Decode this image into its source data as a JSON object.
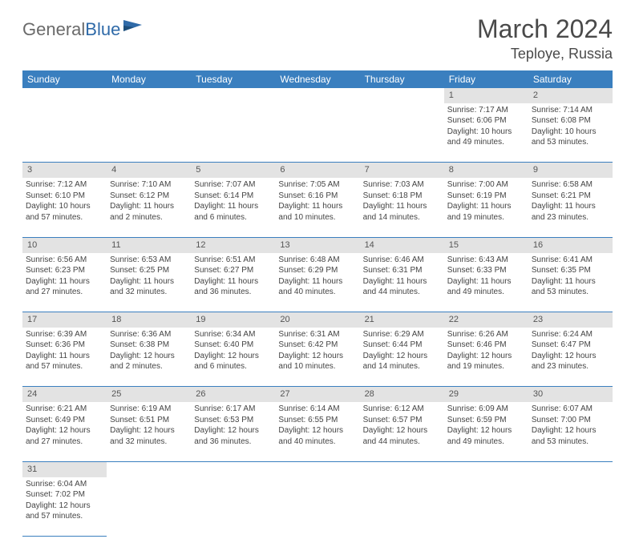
{
  "logo": {
    "part1": "General",
    "part2": "Blue"
  },
  "title": "March 2024",
  "location": "Teploye, Russia",
  "colors": {
    "header_bg": "#3a7fbf",
    "header_text": "#ffffff",
    "daynum_bg": "#e3e3e3",
    "border": "#3a7fbf",
    "logo_gray": "#6a6a6a",
    "logo_blue": "#2f6aa8"
  },
  "weekdays": [
    "Sunday",
    "Monday",
    "Tuesday",
    "Wednesday",
    "Thursday",
    "Friday",
    "Saturday"
  ],
  "weeks": [
    {
      "nums": [
        "",
        "",
        "",
        "",
        "",
        "1",
        "2"
      ],
      "cells": [
        null,
        null,
        null,
        null,
        null,
        {
          "sunrise": "7:17 AM",
          "sunset": "6:06 PM",
          "dl1": "Daylight: 10 hours",
          "dl2": "and 49 minutes."
        },
        {
          "sunrise": "7:14 AM",
          "sunset": "6:08 PM",
          "dl1": "Daylight: 10 hours",
          "dl2": "and 53 minutes."
        }
      ]
    },
    {
      "nums": [
        "3",
        "4",
        "5",
        "6",
        "7",
        "8",
        "9"
      ],
      "cells": [
        {
          "sunrise": "7:12 AM",
          "sunset": "6:10 PM",
          "dl1": "Daylight: 10 hours",
          "dl2": "and 57 minutes."
        },
        {
          "sunrise": "7:10 AM",
          "sunset": "6:12 PM",
          "dl1": "Daylight: 11 hours",
          "dl2": "and 2 minutes."
        },
        {
          "sunrise": "7:07 AM",
          "sunset": "6:14 PM",
          "dl1": "Daylight: 11 hours",
          "dl2": "and 6 minutes."
        },
        {
          "sunrise": "7:05 AM",
          "sunset": "6:16 PM",
          "dl1": "Daylight: 11 hours",
          "dl2": "and 10 minutes."
        },
        {
          "sunrise": "7:03 AM",
          "sunset": "6:18 PM",
          "dl1": "Daylight: 11 hours",
          "dl2": "and 14 minutes."
        },
        {
          "sunrise": "7:00 AM",
          "sunset": "6:19 PM",
          "dl1": "Daylight: 11 hours",
          "dl2": "and 19 minutes."
        },
        {
          "sunrise": "6:58 AM",
          "sunset": "6:21 PM",
          "dl1": "Daylight: 11 hours",
          "dl2": "and 23 minutes."
        }
      ]
    },
    {
      "nums": [
        "10",
        "11",
        "12",
        "13",
        "14",
        "15",
        "16"
      ],
      "cells": [
        {
          "sunrise": "6:56 AM",
          "sunset": "6:23 PM",
          "dl1": "Daylight: 11 hours",
          "dl2": "and 27 minutes."
        },
        {
          "sunrise": "6:53 AM",
          "sunset": "6:25 PM",
          "dl1": "Daylight: 11 hours",
          "dl2": "and 32 minutes."
        },
        {
          "sunrise": "6:51 AM",
          "sunset": "6:27 PM",
          "dl1": "Daylight: 11 hours",
          "dl2": "and 36 minutes."
        },
        {
          "sunrise": "6:48 AM",
          "sunset": "6:29 PM",
          "dl1": "Daylight: 11 hours",
          "dl2": "and 40 minutes."
        },
        {
          "sunrise": "6:46 AM",
          "sunset": "6:31 PM",
          "dl1": "Daylight: 11 hours",
          "dl2": "and 44 minutes."
        },
        {
          "sunrise": "6:43 AM",
          "sunset": "6:33 PM",
          "dl1": "Daylight: 11 hours",
          "dl2": "and 49 minutes."
        },
        {
          "sunrise": "6:41 AM",
          "sunset": "6:35 PM",
          "dl1": "Daylight: 11 hours",
          "dl2": "and 53 minutes."
        }
      ]
    },
    {
      "nums": [
        "17",
        "18",
        "19",
        "20",
        "21",
        "22",
        "23"
      ],
      "cells": [
        {
          "sunrise": "6:39 AM",
          "sunset": "6:36 PM",
          "dl1": "Daylight: 11 hours",
          "dl2": "and 57 minutes."
        },
        {
          "sunrise": "6:36 AM",
          "sunset": "6:38 PM",
          "dl1": "Daylight: 12 hours",
          "dl2": "and 2 minutes."
        },
        {
          "sunrise": "6:34 AM",
          "sunset": "6:40 PM",
          "dl1": "Daylight: 12 hours",
          "dl2": "and 6 minutes."
        },
        {
          "sunrise": "6:31 AM",
          "sunset": "6:42 PM",
          "dl1": "Daylight: 12 hours",
          "dl2": "and 10 minutes."
        },
        {
          "sunrise": "6:29 AM",
          "sunset": "6:44 PM",
          "dl1": "Daylight: 12 hours",
          "dl2": "and 14 minutes."
        },
        {
          "sunrise": "6:26 AM",
          "sunset": "6:46 PM",
          "dl1": "Daylight: 12 hours",
          "dl2": "and 19 minutes."
        },
        {
          "sunrise": "6:24 AM",
          "sunset": "6:47 PM",
          "dl1": "Daylight: 12 hours",
          "dl2": "and 23 minutes."
        }
      ]
    },
    {
      "nums": [
        "24",
        "25",
        "26",
        "27",
        "28",
        "29",
        "30"
      ],
      "cells": [
        {
          "sunrise": "6:21 AM",
          "sunset": "6:49 PM",
          "dl1": "Daylight: 12 hours",
          "dl2": "and 27 minutes."
        },
        {
          "sunrise": "6:19 AM",
          "sunset": "6:51 PM",
          "dl1": "Daylight: 12 hours",
          "dl2": "and 32 minutes."
        },
        {
          "sunrise": "6:17 AM",
          "sunset": "6:53 PM",
          "dl1": "Daylight: 12 hours",
          "dl2": "and 36 minutes."
        },
        {
          "sunrise": "6:14 AM",
          "sunset": "6:55 PM",
          "dl1": "Daylight: 12 hours",
          "dl2": "and 40 minutes."
        },
        {
          "sunrise": "6:12 AM",
          "sunset": "6:57 PM",
          "dl1": "Daylight: 12 hours",
          "dl2": "and 44 minutes."
        },
        {
          "sunrise": "6:09 AM",
          "sunset": "6:59 PM",
          "dl1": "Daylight: 12 hours",
          "dl2": "and 49 minutes."
        },
        {
          "sunrise": "6:07 AM",
          "sunset": "7:00 PM",
          "dl1": "Daylight: 12 hours",
          "dl2": "and 53 minutes."
        }
      ]
    },
    {
      "nums": [
        "31",
        "",
        "",
        "",
        "",
        "",
        ""
      ],
      "cells": [
        {
          "sunrise": "6:04 AM",
          "sunset": "7:02 PM",
          "dl1": "Daylight: 12 hours",
          "dl2": "and 57 minutes."
        },
        null,
        null,
        null,
        null,
        null,
        null
      ]
    }
  ],
  "labels": {
    "sunrise": "Sunrise: ",
    "sunset": "Sunset: "
  }
}
